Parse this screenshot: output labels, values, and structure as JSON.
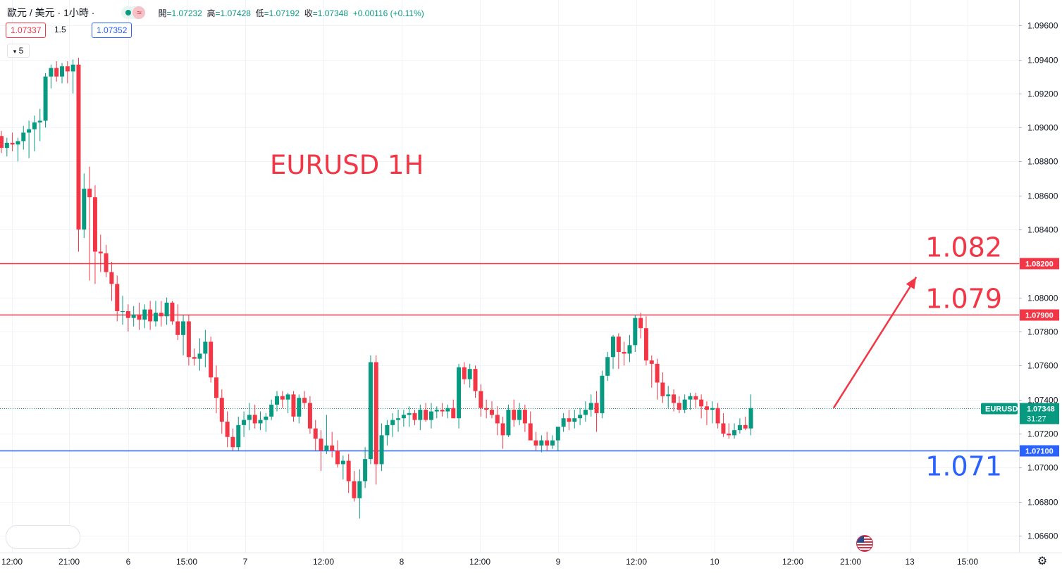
{
  "header": {
    "symbol_name": "歐元 / 美元 · 1小時 ·",
    "ohlc": {
      "open_label": "開",
      "open": "=1.07232",
      "high_label": "高",
      "high": "=1.07428",
      "low_label": "低",
      "low": "=1.07192",
      "close_label": "收",
      "close": "=1.07348",
      "change": "+0.00116 (+0.11%)"
    },
    "sell_price": "1.07337",
    "spread": "1.5",
    "buy_price": "1.07352",
    "indicator_count": "5",
    "live_icon": "wave-icon"
  },
  "chart_data": {
    "type": "candlestick",
    "title": "EURUSD 1H",
    "y_axis": {
      "ylim": [
        1.065,
        1.0975
      ],
      "ticks": [
        "1.09600",
        "1.09400",
        "1.09200",
        "1.09000",
        "1.08800",
        "1.08600",
        "1.08400",
        "1.08200",
        "1.08000",
        "1.07800",
        "1.07600",
        "1.07400",
        "1.07200",
        "1.07000",
        "1.06800",
        "1.06600"
      ],
      "position": "right",
      "grid": true
    },
    "x_axis": {
      "tick_labels": [
        "12:00",
        "21:00",
        "6",
        "15:00",
        "7",
        "12:00",
        "8",
        "12:00",
        "9",
        "12:00",
        "10",
        "12:00",
        "21:00",
        "13",
        "15:00"
      ],
      "grid": true
    },
    "levels": [
      {
        "value": 1.082,
        "axis_label": "1.08200",
        "annotation": "1.082",
        "color": "#f23645"
      },
      {
        "value": 1.079,
        "axis_label": "1.07900",
        "annotation": "1.079",
        "color": "#f23645"
      },
      {
        "value": 1.071,
        "axis_label": "1.07100",
        "annotation": "1.071",
        "color": "#2962ff"
      }
    ],
    "current_price": {
      "symbol": "EURUSD",
      "price": "1.07348",
      "countdown": "31:27",
      "value": 1.07348
    },
    "arrow": {
      "from": {
        "candle": 151,
        "price": 1.0735
      },
      "to": {
        "candle": 166,
        "price": 1.0812
      }
    },
    "up_color": "#089981",
    "down_color": "#f23645",
    "candles": [
      [
        1.0895,
        1.0898,
        1.0885,
        1.0888
      ],
      [
        1.0888,
        1.0894,
        1.0883,
        1.0891
      ],
      [
        1.0891,
        1.0897,
        1.0886,
        1.089
      ],
      [
        1.089,
        1.0894,
        1.088,
        1.0892
      ],
      [
        1.0892,
        1.0901,
        1.0887,
        1.0897
      ],
      [
        1.0897,
        1.0904,
        1.0882,
        1.0899
      ],
      [
        1.0899,
        1.0907,
        1.0886,
        1.0903
      ],
      [
        1.0903,
        1.0911,
        1.0892,
        1.0904
      ],
      [
        1.0904,
        1.0932,
        1.09,
        1.093
      ],
      [
        1.093,
        1.0937,
        1.0923,
        1.0935
      ],
      [
        1.0935,
        1.0939,
        1.0927,
        1.093
      ],
      [
        1.093,
        1.0938,
        1.0926,
        1.0936
      ],
      [
        1.0936,
        1.0939,
        1.0926,
        1.0933
      ],
      [
        1.0933,
        1.094,
        1.092,
        1.0937
      ],
      [
        1.0937,
        1.0941,
        1.0827,
        1.084
      ],
      [
        1.084,
        1.0873,
        1.0835,
        1.0864
      ],
      [
        1.0864,
        1.0877,
        1.081,
        1.0859
      ],
      [
        1.0859,
        1.0866,
        1.0808,
        1.0827
      ],
      [
        1.0827,
        1.0837,
        1.0815,
        1.0826
      ],
      [
        1.0826,
        1.0831,
        1.0812,
        1.0815
      ],
      [
        1.0815,
        1.0821,
        1.0798,
        1.0808
      ],
      [
        1.0808,
        1.0813,
        1.0786,
        1.0792
      ],
      [
        1.0792,
        1.0801,
        1.0784,
        1.0792
      ],
      [
        1.0792,
        1.0796,
        1.078,
        1.0788
      ],
      [
        1.0788,
        1.0795,
        1.0783,
        1.079
      ],
      [
        1.079,
        1.0797,
        1.0781,
        1.0787
      ],
      [
        1.0787,
        1.0796,
        1.0782,
        1.0793
      ],
      [
        1.0793,
        1.0798,
        1.0781,
        1.0786
      ],
      [
        1.0786,
        1.0798,
        1.0783,
        1.0791
      ],
      [
        1.0791,
        1.0798,
        1.0783,
        1.0789
      ],
      [
        1.0789,
        1.08,
        1.0784,
        1.0797
      ],
      [
        1.0797,
        1.0798,
        1.0784,
        1.0786
      ],
      [
        1.0786,
        1.0796,
        1.0775,
        1.0778
      ],
      [
        1.0778,
        1.079,
        1.0766,
        1.0786
      ],
      [
        1.0786,
        1.079,
        1.076,
        1.0765
      ],
      [
        1.0765,
        1.077,
        1.076,
        1.0764
      ],
      [
        1.0764,
        1.0776,
        1.0757,
        1.0767
      ],
      [
        1.0767,
        1.0781,
        1.0759,
        1.0774
      ],
      [
        1.0774,
        1.0777,
        1.075,
        1.0753
      ],
      [
        1.0753,
        1.076,
        1.0732,
        1.0741
      ],
      [
        1.0741,
        1.0746,
        1.072,
        1.0727
      ],
      [
        1.0727,
        1.0733,
        1.0712,
        1.0718
      ],
      [
        1.0718,
        1.0723,
        1.071,
        1.0712
      ],
      [
        1.0712,
        1.073,
        1.071,
        1.0725
      ],
      [
        1.0725,
        1.0733,
        1.0718,
        1.0728
      ],
      [
        1.0728,
        1.0738,
        1.0722,
        1.0731
      ],
      [
        1.0731,
        1.0737,
        1.0723,
        1.0726
      ],
      [
        1.0726,
        1.0733,
        1.0722,
        1.0728
      ],
      [
        1.0728,
        1.0732,
        1.0721,
        1.073
      ],
      [
        1.073,
        1.074,
        1.0728,
        1.0737
      ],
      [
        1.0737,
        1.0745,
        1.0733,
        1.0742
      ],
      [
        1.0742,
        1.0745,
        1.0735,
        1.074
      ],
      [
        1.074,
        1.0744,
        1.0732,
        1.0743
      ],
      [
        1.0743,
        1.0745,
        1.0727,
        1.073
      ],
      [
        1.073,
        1.0743,
        1.0726,
        1.0741
      ],
      [
        1.0741,
        1.0745,
        1.0735,
        1.0738
      ],
      [
        1.0738,
        1.0742,
        1.072,
        1.0723
      ],
      [
        1.0723,
        1.0728,
        1.071,
        1.0717
      ],
      [
        1.0717,
        1.0722,
        1.0698,
        1.071
      ],
      [
        1.071,
        1.0731,
        1.0708,
        1.0713
      ],
      [
        1.0713,
        1.0721,
        1.0706,
        1.071
      ],
      [
        1.071,
        1.0716,
        1.07,
        1.0702
      ],
      [
        1.0702,
        1.0707,
        1.0693,
        1.0704
      ],
      [
        1.0704,
        1.0708,
        1.0685,
        1.0692
      ],
      [
        1.0692,
        1.0698,
        1.068,
        1.0682
      ],
      [
        1.0682,
        1.0699,
        1.067,
        1.0692
      ],
      [
        1.0692,
        1.0712,
        1.0688,
        1.0705
      ],
      [
        1.0705,
        1.0766,
        1.0702,
        1.0762
      ],
      [
        1.0762,
        1.0766,
        1.069,
        1.0702
      ],
      [
        1.0702,
        1.0726,
        1.0698,
        1.0719
      ],
      [
        1.0719,
        1.0728,
        1.0713,
        1.0725
      ],
      [
        1.0725,
        1.0732,
        1.0718,
        1.0728
      ],
      [
        1.0728,
        1.0734,
        1.0721,
        1.0729
      ],
      [
        1.0729,
        1.0734,
        1.0724,
        1.0731
      ],
      [
        1.0731,
        1.0736,
        1.0724,
        1.0732
      ],
      [
        1.0732,
        1.0734,
        1.0725,
        1.0728
      ],
      [
        1.0728,
        1.0737,
        1.0722,
        1.0734
      ],
      [
        1.0734,
        1.0738,
        1.0727,
        1.0728
      ],
      [
        1.0728,
        1.0738,
        1.0723,
        1.0733
      ],
      [
        1.0733,
        1.0736,
        1.0729,
        1.0734
      ],
      [
        1.0734,
        1.0738,
        1.073,
        1.0733
      ],
      [
        1.0733,
        1.0737,
        1.0729,
        1.0735
      ],
      [
        1.0735,
        1.074,
        1.0729,
        1.0729
      ],
      [
        1.0729,
        1.0761,
        1.0723,
        1.0759
      ],
      [
        1.0759,
        1.0762,
        1.0749,
        1.0752
      ],
      [
        1.0752,
        1.0761,
        1.0747,
        1.0758
      ],
      [
        1.0758,
        1.076,
        1.0741,
        1.0745
      ],
      [
        1.0745,
        1.0749,
        1.073,
        1.0735
      ],
      [
        1.0735,
        1.074,
        1.0729,
        1.0734
      ],
      [
        1.0734,
        1.0739,
        1.0729,
        1.0731
      ],
      [
        1.0731,
        1.0736,
        1.0719,
        1.0726
      ],
      [
        1.0726,
        1.073,
        1.0711,
        1.0719
      ],
      [
        1.0719,
        1.0737,
        1.0718,
        1.0734
      ],
      [
        1.0734,
        1.074,
        1.0724,
        1.0728
      ],
      [
        1.0728,
        1.0738,
        1.0725,
        1.0734
      ],
      [
        1.0734,
        1.0737,
        1.0721,
        1.0726
      ],
      [
        1.0726,
        1.0733,
        1.0717,
        1.0716
      ],
      [
        1.0716,
        1.0721,
        1.071,
        1.0713
      ],
      [
        1.0713,
        1.0719,
        1.0709,
        1.0716
      ],
      [
        1.0716,
        1.0721,
        1.071,
        1.0713
      ],
      [
        1.0713,
        1.0719,
        1.0711,
        1.0716
      ],
      [
        1.0716,
        1.0724,
        1.071,
        1.0724
      ],
      [
        1.0724,
        1.0732,
        1.0721,
        1.0729
      ],
      [
        1.0729,
        1.0734,
        1.0722,
        1.0727
      ],
      [
        1.0727,
        1.0734,
        1.0723,
        1.0729
      ],
      [
        1.0729,
        1.0735,
        1.0725,
        1.0731
      ],
      [
        1.0731,
        1.0739,
        1.0727,
        1.0734
      ],
      [
        1.0734,
        1.0743,
        1.073,
        1.0738
      ],
      [
        1.0738,
        1.0745,
        1.0721,
        1.0732
      ],
      [
        1.0732,
        1.0757,
        1.0729,
        1.0754
      ],
      [
        1.0754,
        1.0768,
        1.0751,
        1.0765
      ],
      [
        1.0765,
        1.0778,
        1.0758,
        1.0777
      ],
      [
        1.0777,
        1.0779,
        1.0758,
        1.0768
      ],
      [
        1.0768,
        1.0774,
        1.076,
        1.0767
      ],
      [
        1.0767,
        1.0778,
        1.0762,
        1.0772
      ],
      [
        1.0772,
        1.079,
        1.0768,
        1.0788
      ],
      [
        1.0788,
        1.0791,
        1.0776,
        1.0782
      ],
      [
        1.0782,
        1.0789,
        1.076,
        1.0763
      ],
      [
        1.0763,
        1.0766,
        1.0747,
        1.0761
      ],
      [
        1.0761,
        1.0764,
        1.074,
        1.075
      ],
      [
        1.075,
        1.0756,
        1.0738,
        1.0742
      ],
      [
        1.0742,
        1.0748,
        1.0735,
        1.0743
      ],
      [
        1.0743,
        1.0746,
        1.0733,
        1.0738
      ],
      [
        1.0738,
        1.0742,
        1.0732,
        1.0734
      ],
      [
        1.0734,
        1.0743,
        1.0732,
        1.074
      ],
      [
        1.074,
        1.0744,
        1.0734,
        1.0742
      ],
      [
        1.0742,
        1.0744,
        1.0735,
        1.074
      ],
      [
        1.074,
        1.0743,
        1.0729,
        1.0736
      ],
      [
        1.0736,
        1.0739,
        1.0725,
        1.0734
      ],
      [
        1.0734,
        1.0739,
        1.0726,
        1.0735
      ],
      [
        1.0735,
        1.0738,
        1.0723,
        1.0726
      ],
      [
        1.0726,
        1.0732,
        1.0718,
        1.072
      ],
      [
        1.072,
        1.0726,
        1.0717,
        1.0719
      ],
      [
        1.0719,
        1.0726,
        1.0717,
        1.0722
      ],
      [
        1.0722,
        1.0729,
        1.072,
        1.0725
      ],
      [
        1.0725,
        1.073,
        1.0722,
        1.0723
      ],
      [
        1.0723,
        1.0743,
        1.0719,
        1.0735
      ]
    ]
  }
}
